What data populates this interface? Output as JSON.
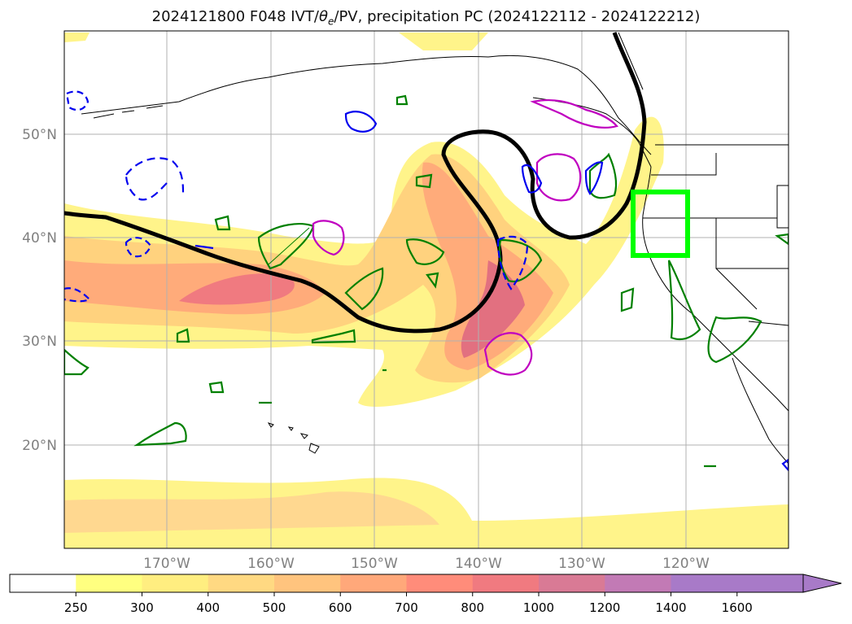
{
  "title": {
    "prefix": "2024121800 F048 IVT/",
    "theta": "θ",
    "theta_sub": "e",
    "suffix": "/PV, precipitation PC (2024122112 - 2024122212)"
  },
  "lat_labels": [
    "50°N",
    "40°N",
    "30°N",
    "20°N"
  ],
  "lon_labels": [
    "170°W",
    "160°W",
    "150°W",
    "140°W",
    "130°W",
    "120°W"
  ],
  "colorbar": {
    "ticks": [
      "250",
      "300",
      "400",
      "500",
      "600",
      "700",
      "800",
      "1000",
      "1200",
      "1400",
      "1600"
    ],
    "colors": [
      "#ffffff",
      "#ffff80",
      "#ffee80",
      "#ffd982",
      "#ffc47e",
      "#ffa87a",
      "#ff8c7a",
      "#f07a80",
      "#d97a95",
      "#c27ab5",
      "#a87ac8"
    ]
  },
  "colors": {
    "ivt_light": "#fff48a",
    "ivt_mid": "#ffd27e",
    "ivt_high": "#ff9a7a",
    "ivt_peak": "#f07a80",
    "theta_line": "#000000",
    "pv_green": "#008000",
    "pos_magenta": "#c000c0",
    "neg_blue": "#0000ee",
    "box_green": "#00ff00",
    "grid": "#b0b0b0",
    "tick_label": "#808080"
  }
}
